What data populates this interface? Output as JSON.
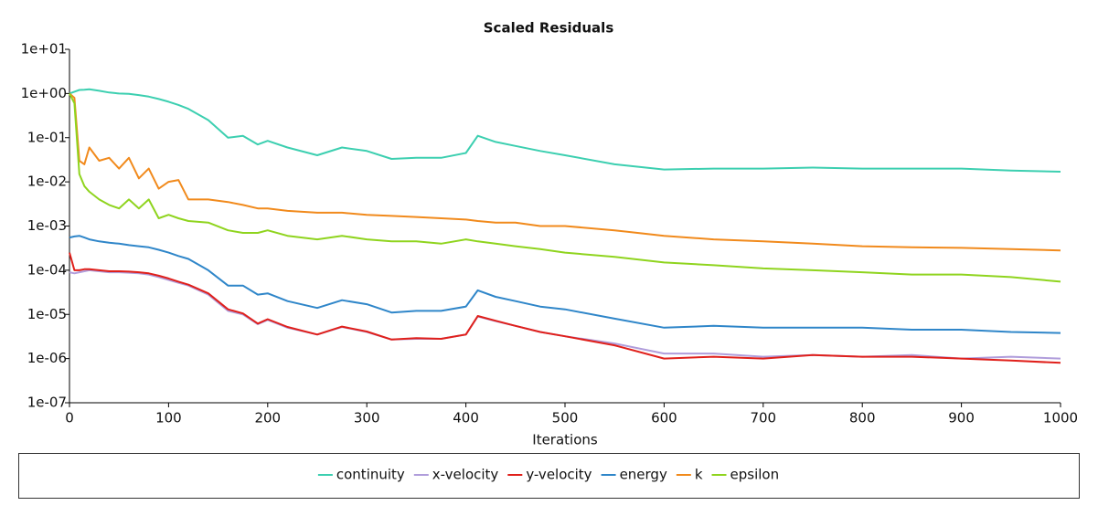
{
  "chart_data": {
    "type": "line",
    "title": "Scaled Residuals",
    "x_label": "Iterations",
    "yscale": "log",
    "xlim": [
      0,
      1000
    ],
    "xticks": [
      0,
      100,
      200,
      300,
      400,
      500,
      600,
      700,
      800,
      900,
      1000
    ],
    "ylim": [
      1e-07,
      10
    ],
    "yticks": [
      {
        "value": 1e-07,
        "label": "1e-07"
      },
      {
        "value": 1e-06,
        "label": "1e-06"
      },
      {
        "value": 1e-05,
        "label": "1e-05"
      },
      {
        "value": 0.0001,
        "label": "1e-04"
      },
      {
        "value": 0.001,
        "label": "1e-03"
      },
      {
        "value": 0.01,
        "label": "1e-02"
      },
      {
        "value": 0.1,
        "label": "1e-01"
      },
      {
        "value": 1,
        "label": "1e+00"
      },
      {
        "value": 10,
        "label": "1e+01"
      }
    ],
    "legend": "bottom",
    "x": [
      0,
      5,
      10,
      15,
      20,
      30,
      40,
      50,
      60,
      70,
      80,
      90,
      100,
      110,
      120,
      140,
      160,
      175,
      190,
      200,
      220,
      250,
      275,
      300,
      325,
      350,
      375,
      400,
      412,
      430,
      450,
      475,
      500,
      550,
      600,
      650,
      700,
      750,
      800,
      850,
      900,
      950,
      1000
    ],
    "series": [
      {
        "name": "continuity",
        "color": "#3ccfb0",
        "values": [
          1.0,
          1.1,
          1.2,
          1.22,
          1.25,
          1.15,
          1.05,
          1.0,
          0.98,
          0.92,
          0.85,
          0.75,
          0.65,
          0.55,
          0.45,
          0.25,
          0.1,
          0.11,
          0.07,
          0.085,
          0.06,
          0.04,
          0.06,
          0.05,
          0.033,
          0.035,
          0.035,
          0.045,
          0.11,
          0.08,
          0.065,
          0.05,
          0.04,
          0.025,
          0.019,
          0.02,
          0.02,
          0.021,
          0.02,
          0.02,
          0.02,
          0.018,
          0.017
        ]
      },
      {
        "name": "x-velocity",
        "color": "#b09ddb",
        "values": [
          9e-05,
          8.5e-05,
          9e-05,
          9.5e-05,
          0.0001,
          9.5e-05,
          9e-05,
          9e-05,
          8.8e-05,
          8.5e-05,
          8e-05,
          7e-05,
          6e-05,
          5.2e-05,
          4.5e-05,
          2.8e-05,
          1.2e-05,
          1e-05,
          6e-06,
          7.5e-06,
          5e-06,
          3.5e-06,
          5.2e-06,
          4e-06,
          2.7e-06,
          2.8e-06,
          2.8e-06,
          3.5e-06,
          9e-06,
          7e-06,
          5.5e-06,
          4e-06,
          3.2e-06,
          2.2e-06,
          1.3e-06,
          1.3e-06,
          1.1e-06,
          1.2e-06,
          1.1e-06,
          1.2e-06,
          1e-06,
          1.1e-06,
          1e-06
        ]
      },
      {
        "name": "y-velocity",
        "color": "#e0201b",
        "values": [
          0.00025,
          0.0001,
          0.0001,
          0.000105,
          0.000105,
          0.0001,
          9.5e-05,
          9.5e-05,
          9.3e-05,
          9e-05,
          8.5e-05,
          7.5e-05,
          6.5e-05,
          5.5e-05,
          4.7e-05,
          3e-05,
          1.3e-05,
          1.05e-05,
          6.2e-06,
          7.8e-06,
          5.2e-06,
          3.5e-06,
          5.3e-06,
          4.1e-06,
          2.7e-06,
          2.9e-06,
          2.8e-06,
          3.5e-06,
          9.2e-06,
          7.2e-06,
          5.5e-06,
          4e-06,
          3.2e-06,
          2e-06,
          1e-06,
          1.1e-06,
          1e-06,
          1.2e-06,
          1.1e-06,
          1.1e-06,
          1e-06,
          9e-07,
          8e-07
        ]
      },
      {
        "name": "energy",
        "color": "#2f86c9",
        "values": [
          0.00055,
          0.00058,
          0.0006,
          0.00055,
          0.0005,
          0.00045,
          0.00042,
          0.0004,
          0.00037,
          0.00035,
          0.00033,
          0.00029,
          0.00025,
          0.00021,
          0.00018,
          0.0001,
          4.5e-05,
          4.5e-05,
          2.8e-05,
          3e-05,
          2e-05,
          1.4e-05,
          2.1e-05,
          1.7e-05,
          1.1e-05,
          1.2e-05,
          1.2e-05,
          1.5e-05,
          3.5e-05,
          2.5e-05,
          2e-05,
          1.5e-05,
          1.3e-05,
          8e-06,
          5e-06,
          5.5e-06,
          5e-06,
          5e-06,
          5e-06,
          4.5e-06,
          4.5e-06,
          4e-06,
          3.8e-06
        ]
      },
      {
        "name": "k",
        "color": "#f18a1c",
        "values": [
          1.0,
          0.8,
          0.03,
          0.025,
          0.06,
          0.03,
          0.035,
          0.02,
          0.035,
          0.012,
          0.02,
          0.007,
          0.01,
          0.011,
          0.004,
          0.004,
          0.0035,
          0.003,
          0.0025,
          0.0025,
          0.0022,
          0.002,
          0.002,
          0.0018,
          0.0017,
          0.0016,
          0.0015,
          0.0014,
          0.0013,
          0.0012,
          0.0012,
          0.001,
          0.001,
          0.0008,
          0.0006,
          0.0005,
          0.00045,
          0.0004,
          0.00035,
          0.00033,
          0.00032,
          0.0003,
          0.00028
        ]
      },
      {
        "name": "epsilon",
        "color": "#8fd41e",
        "values": [
          1.0,
          0.6,
          0.015,
          0.008,
          0.006,
          0.004,
          0.003,
          0.0025,
          0.004,
          0.0025,
          0.004,
          0.0015,
          0.0018,
          0.0015,
          0.0013,
          0.0012,
          0.0008,
          0.0007,
          0.0007,
          0.0008,
          0.0006,
          0.0005,
          0.0006,
          0.0005,
          0.00045,
          0.00045,
          0.0004,
          0.0005,
          0.00045,
          0.0004,
          0.00035,
          0.0003,
          0.00025,
          0.0002,
          0.00015,
          0.00013,
          0.00011,
          0.0001,
          9e-05,
          8e-05,
          8e-05,
          7e-05,
          5.5e-05
        ]
      }
    ]
  }
}
